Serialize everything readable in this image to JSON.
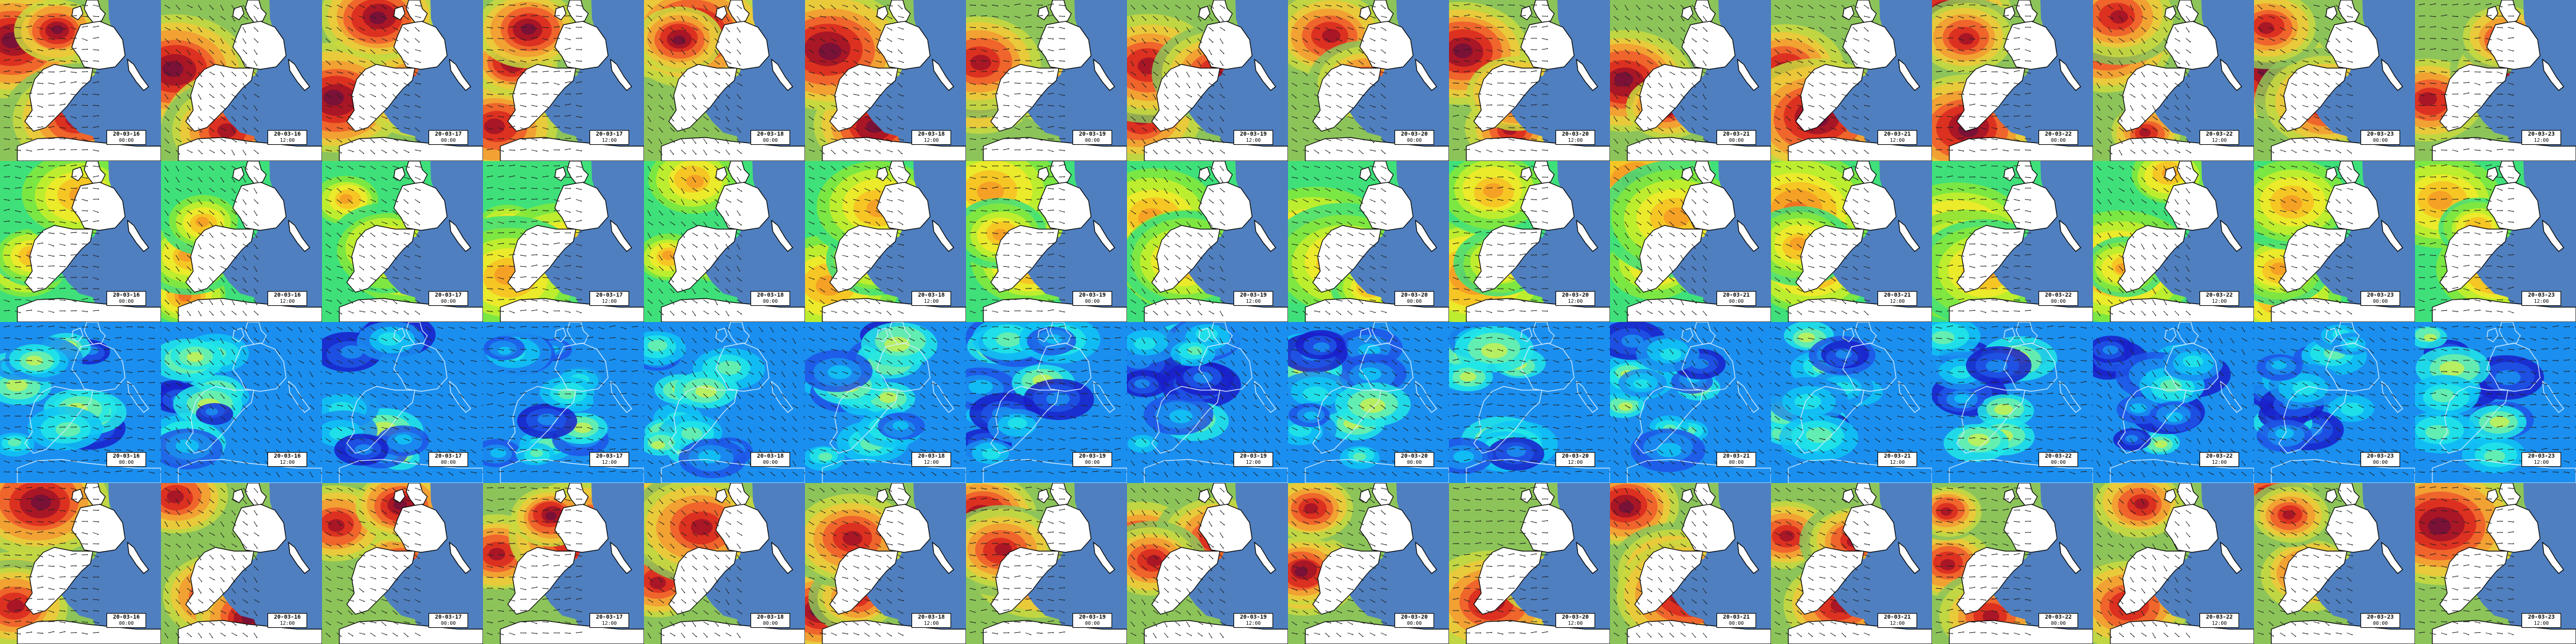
{
  "grid": {
    "rows": 4,
    "columns": 16
  },
  "dates": [
    "20-03-16",
    "20-03-16",
    "20-03-17",
    "20-03-17",
    "20-03-18",
    "20-03-18",
    "20-03-19",
    "20-03-19",
    "20-03-20",
    "20-03-20",
    "20-03-21",
    "20-03-21",
    "20-03-22",
    "20-03-22",
    "20-03-23",
    "20-03-23"
  ],
  "times": [
    "00:00",
    "12:00",
    "00:00",
    "12:00",
    "00:00",
    "12:00",
    "00:00",
    "12:00",
    "00:00",
    "12:00",
    "00:00",
    "12:00",
    "00:00",
    "12:00",
    "00:00",
    "12:00"
  ],
  "rows": [
    {
      "name": "row-wave-height",
      "palette": "wave",
      "field_style": "smooth"
    },
    {
      "name": "row-wave-period",
      "palette": "period",
      "field_style": "smooth"
    },
    {
      "name": "row-wind",
      "palette": "wind",
      "field_style": "patchy"
    },
    {
      "name": "row-wave-height-2",
      "palette": "wave",
      "field_style": "smooth"
    }
  ],
  "palettes": {
    "wave": [
      "#5aa56a",
      "#8cc45a",
      "#c9d93f",
      "#f0c83a",
      "#f39a33",
      "#ee5b2c",
      "#d8281f",
      "#a01228",
      "#72103a"
    ],
    "period": [
      "#27d3e3",
      "#3fe07a",
      "#86e83a",
      "#c8ee2c",
      "#f3e92a",
      "#f8c025",
      "#f49a26",
      "#ef6b23"
    ],
    "wind": [
      "#1a1fc9",
      "#1f55e6",
      "#1a8ff0",
      "#10c4f5",
      "#22e6e6",
      "#6ff0a8",
      "#c6f053",
      "#f4e842"
    ]
  },
  "colors": {
    "land": "#ffffff",
    "sea_blocked": "#4f7fbf",
    "coast": "#000000",
    "arrow": "#222222"
  }
}
